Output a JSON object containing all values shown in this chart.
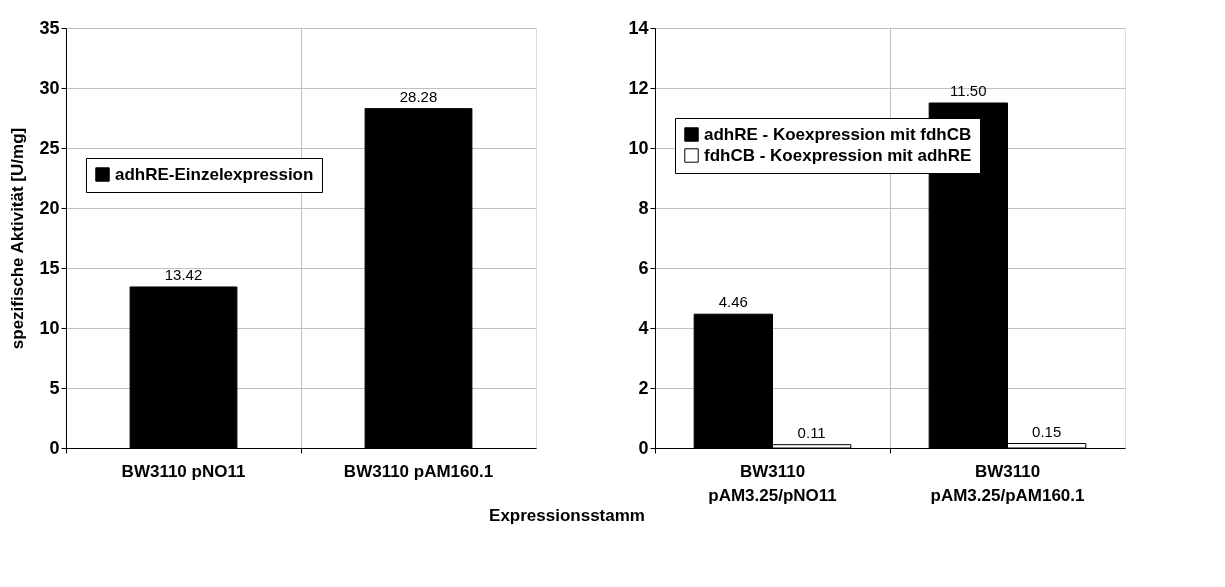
{
  "chart_data": [
    {
      "type": "bar",
      "ylabel": "spezifische Aktivität [U/mg]",
      "categories": [
        "BW3110 pNO11",
        "BW3110 pAM160.1"
      ],
      "series": [
        {
          "name": "adhRE-Einzelexpression",
          "color": "#000000",
          "values": [
            13.42,
            28.28
          ],
          "value_labels": [
            "13.42",
            "28.28"
          ]
        }
      ],
      "ylim": [
        0,
        35
      ],
      "yticks": [
        0,
        5,
        10,
        15,
        20,
        25,
        30,
        35
      ],
      "grid": true,
      "legend": "left"
    },
    {
      "type": "bar",
      "xlabel": "Expressionsstamm",
      "categories": [
        "BW3110\npAM3.25/pNO11",
        "BW3110\npAM3.25/pAM160.1"
      ],
      "series": [
        {
          "name": "adhRE - Koexpression mit fdhCB",
          "color": "#000000",
          "values": [
            4.46,
            11.5
          ],
          "value_labels": [
            "4.46",
            "11.50"
          ]
        },
        {
          "name": "fdhCB - Koexpression mit adhRE",
          "color": "#ffffff",
          "values": [
            0.11,
            0.15
          ],
          "value_labels": [
            "0.11",
            "0.15"
          ]
        }
      ],
      "ylim": [
        0,
        14
      ],
      "yticks": [
        0,
        2,
        4,
        6,
        8,
        10,
        12,
        14
      ],
      "grid": true,
      "legend": "top left"
    }
  ]
}
